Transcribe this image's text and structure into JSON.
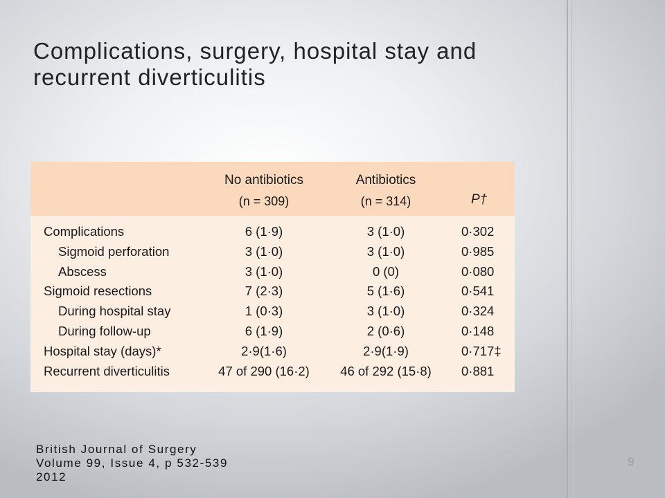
{
  "slide": {
    "title": "Complications, surgery, hospital stay and recurrent diverticulitis",
    "page_number": "9"
  },
  "table": {
    "columns": [
      {
        "name": "No antibiotics",
        "n": "(n = 309)"
      },
      {
        "name": "Antibiotics",
        "n": "(n = 314)"
      },
      {
        "name": "P†"
      }
    ],
    "rows": [
      {
        "label": "Complications",
        "no_antibiotics": "6 (1·9)",
        "antibiotics": "3 (1·0)",
        "p": "0·302"
      },
      {
        "label": "Sigmoid perforation",
        "no_antibiotics": "3 (1·0)",
        "antibiotics": "3 (1·0)",
        "p": "0·985"
      },
      {
        "label": "Abscess",
        "no_antibiotics": "3 (1·0)",
        "antibiotics": "0 (0)",
        "p": "0·080"
      },
      {
        "label": "Sigmoid resections",
        "no_antibiotics": "7 (2·3)",
        "antibiotics": "5 (1·6)",
        "p": "0·541"
      },
      {
        "label": "During hospital stay",
        "no_antibiotics": "1 (0·3)",
        "antibiotics": "3 (1·0)",
        "p": "0·324"
      },
      {
        "label": "During follow-up",
        "no_antibiotics": "6 (1·9)",
        "antibiotics": "2 (0·6)",
        "p": "0·148"
      },
      {
        "label": "Hospital stay (days)*",
        "no_antibiotics": "2·9(1·6)",
        "antibiotics": "2·9(1·9)",
        "p": "0·717‡"
      },
      {
        "label": "Recurrent diverticulitis",
        "no_antibiotics": "47 of 290 (16·2)",
        "antibiotics": "46 of 292 (15·8)",
        "p": "0·881"
      }
    ]
  },
  "reference": {
    "line1": "British Journal of Surgery",
    "line2": "Volume 99, Issue 4, p 532-539",
    "line3": "2012"
  },
  "colors": {
    "table_header_bg": "#fbd9bd",
    "table_body_bg": "#fdeee2"
  }
}
